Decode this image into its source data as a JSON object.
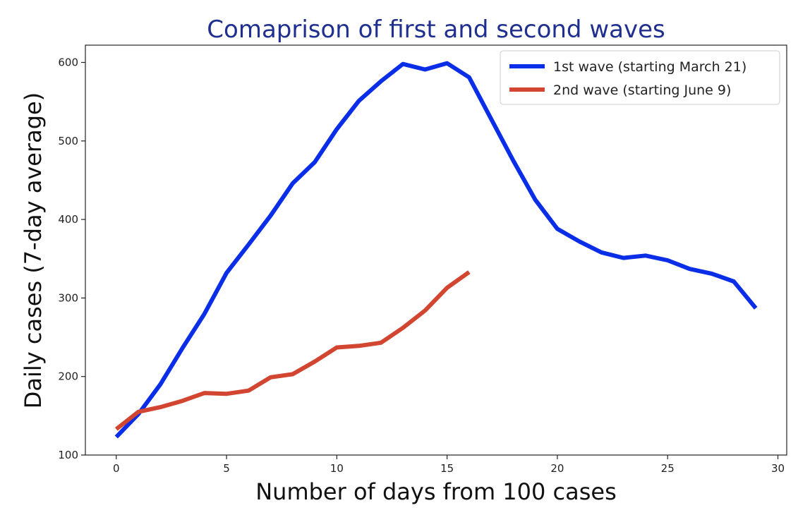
{
  "chart_data": {
    "type": "line",
    "title": "Comaprison of first and second waves",
    "xlabel": "Number of days from 100 cases",
    "ylabel": "Daily cases (7-day average)",
    "xlim": [
      -1.4,
      30.4
    ],
    "ylim": [
      100,
      622
    ],
    "xticks": [
      0,
      5,
      10,
      15,
      20,
      25,
      30
    ],
    "yticks": [
      100,
      200,
      300,
      400,
      500,
      600
    ],
    "grid": false,
    "legend_position": "top-right",
    "series": [
      {
        "name": "1st wave (starting March 21)",
        "color": "#0a2ee8",
        "x": [
          0,
          1,
          2,
          3,
          4,
          5,
          6,
          7,
          8,
          9,
          10,
          11,
          12,
          13,
          14,
          15,
          16,
          17,
          18,
          19,
          20,
          21,
          22,
          23,
          24,
          25,
          26,
          27,
          28,
          29
        ],
        "y": [
          123,
          152,
          190,
          236,
          280,
          332,
          368,
          405,
          446,
          473,
          515,
          551,
          576,
          598,
          591,
          599,
          581,
          528,
          475,
          425,
          388,
          372,
          358,
          351,
          354,
          348,
          337,
          331,
          321,
          287
        ]
      },
      {
        "name": "2nd wave (starting June 9)",
        "color": "#d24530",
        "x": [
          0,
          1,
          2,
          3,
          4,
          5,
          6,
          7,
          8,
          9,
          10,
          11,
          12,
          13,
          14,
          15,
          16
        ],
        "y": [
          133,
          155,
          161,
          169,
          179,
          178,
          182,
          199,
          203,
          219,
          237,
          239,
          243,
          262,
          284,
          313,
          333
        ]
      }
    ]
  }
}
